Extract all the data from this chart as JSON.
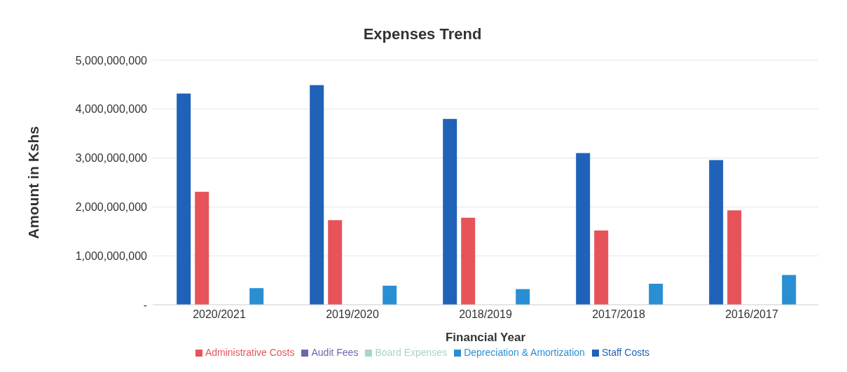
{
  "chart_data": {
    "type": "bar",
    "title": "Expenses Trend",
    "xlabel": "Financial Year",
    "ylabel": "Amount in Kshs",
    "categories": [
      "2020/2021",
      "2019/2020",
      "2018/2019",
      "2017/2018",
      "2016/2017"
    ],
    "series": [
      {
        "name": "Staff Costs",
        "color": "#1f62b8",
        "values": [
          4320000000,
          4490000000,
          3800000000,
          3100000000,
          2960000000
        ]
      },
      {
        "name": "Administrative Costs",
        "color": "#e6545a",
        "values": [
          2310000000,
          1730000000,
          1780000000,
          1520000000,
          1930000000
        ]
      },
      {
        "name": "Board Expenses",
        "color": "#a6d6c4",
        "values": [
          0,
          0,
          0,
          0,
          0
        ]
      },
      {
        "name": "Audit Fees",
        "color": "#6a68ad",
        "values": [
          0,
          0,
          0,
          0,
          0
        ]
      },
      {
        "name": "Depreciation & Amortization",
        "color": "#2a8fd2",
        "values": [
          340000000,
          390000000,
          320000000,
          430000000,
          610000000
        ]
      }
    ],
    "ylim": [
      0,
      5000000000
    ],
    "yticks": [
      {
        "value": 0,
        "label": "-"
      },
      {
        "value": 1000000000,
        "label": "1,000,000,000"
      },
      {
        "value": 2000000000,
        "label": "2,000,000,000"
      },
      {
        "value": 3000000000,
        "label": "3,000,000,000"
      },
      {
        "value": 4000000000,
        "label": "4,000,000,000"
      },
      {
        "value": 5000000000,
        "label": "5,000,000,000"
      }
    ],
    "grid": "y",
    "legend": "bottom"
  }
}
